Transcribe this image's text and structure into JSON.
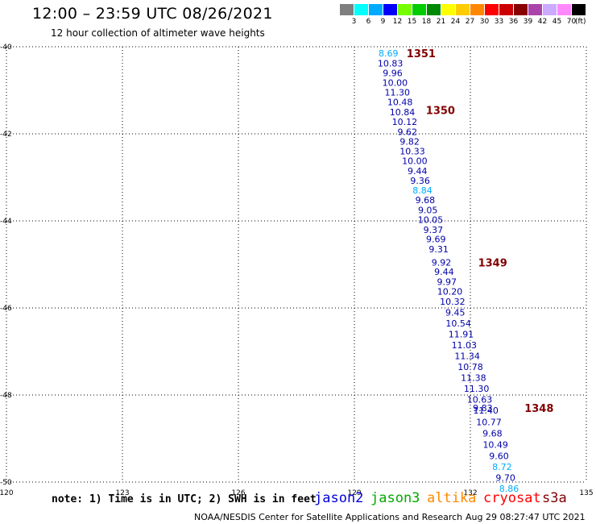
{
  "header": {
    "title": "12:00 – 23:59 UTC 08/26/2021",
    "subtitle": "12 hour collection of altimeter wave heights"
  },
  "legend": {
    "unit": "(ft)",
    "bins": [
      {
        "label": "3",
        "color": "#7f7f7f"
      },
      {
        "label": "6",
        "color": "#00ffff"
      },
      {
        "label": "9",
        "color": "#00aaff"
      },
      {
        "label": "12",
        "color": "#0000ff"
      },
      {
        "label": "15",
        "color": "#77ff00"
      },
      {
        "label": "18",
        "color": "#00cc00"
      },
      {
        "label": "21",
        "color": "#008800"
      },
      {
        "label": "24",
        "color": "#ffff00"
      },
      {
        "label": "27",
        "color": "#ffcc00"
      },
      {
        "label": "30",
        "color": "#ff8800"
      },
      {
        "label": "33",
        "color": "#ff0000"
      },
      {
        "label": "36",
        "color": "#cc0000"
      },
      {
        "label": "39",
        "color": "#880000"
      },
      {
        "label": "42",
        "color": "#aa44aa"
      },
      {
        "label": "45",
        "color": "#ccaaff"
      },
      {
        "label": "70",
        "color": "#ff88ff"
      },
      {
        "label": "",
        "color": "#000000"
      }
    ]
  },
  "map": {
    "lon_range": [
      120,
      135
    ],
    "lat_range": [
      -50,
      -40
    ],
    "lon_ticks": [
      "120",
      "123",
      "126",
      "129",
      "132",
      "135"
    ],
    "lat_ticks": [
      "-40",
      "-42",
      "-44",
      "-46",
      "-48",
      "-50"
    ],
    "grid_color": "#000000",
    "time_labels": [
      {
        "text": "1351",
        "lon": 130.35,
        "lat": -40.15
      },
      {
        "text": "1350",
        "lon": 130.85,
        "lat": -41.45
      },
      {
        "text": "1349",
        "lon": 132.2,
        "lat": -44.95
      },
      {
        "text": "1348",
        "lon": 133.4,
        "lat": -48.3
      }
    ],
    "time_label_color": "#800000",
    "observations": [
      {
        "swh": "8.69",
        "lon": 129.88,
        "lat": -40.15,
        "color": "#00aaff"
      },
      {
        "swh": "10.83",
        "lon": 129.93,
        "lat": -40.38,
        "color": "#0000aa"
      },
      {
        "swh": "9.96",
        "lon": 129.99,
        "lat": -40.6,
        "color": "#0000aa"
      },
      {
        "swh": "10.00",
        "lon": 130.05,
        "lat": -40.82,
        "color": "#0000aa"
      },
      {
        "swh": "11.30",
        "lon": 130.11,
        "lat": -41.05,
        "color": "#0000aa"
      },
      {
        "swh": "10.48",
        "lon": 130.18,
        "lat": -41.27,
        "color": "#0000aa"
      },
      {
        "swh": "10.84",
        "lon": 130.24,
        "lat": -41.5,
        "color": "#0000aa"
      },
      {
        "swh": "10.12",
        "lon": 130.3,
        "lat": -41.72,
        "color": "#0000aa"
      },
      {
        "swh": "9.62",
        "lon": 130.37,
        "lat": -41.95,
        "color": "#0000aa"
      },
      {
        "swh": "9.82",
        "lon": 130.43,
        "lat": -42.18,
        "color": "#0000aa"
      },
      {
        "swh": "10.33",
        "lon": 130.5,
        "lat": -42.4,
        "color": "#0000aa"
      },
      {
        "swh": "10.00",
        "lon": 130.56,
        "lat": -42.62,
        "color": "#0000aa"
      },
      {
        "swh": "9.44",
        "lon": 130.63,
        "lat": -42.85,
        "color": "#0000aa"
      },
      {
        "swh": "9.36",
        "lon": 130.7,
        "lat": -43.07,
        "color": "#0000aa"
      },
      {
        "swh": "8.84",
        "lon": 130.76,
        "lat": -43.3,
        "color": "#00aaff"
      },
      {
        "swh": "9.68",
        "lon": 130.83,
        "lat": -43.52,
        "color": "#0000aa"
      },
      {
        "swh": "9.05",
        "lon": 130.9,
        "lat": -43.75,
        "color": "#0000aa"
      },
      {
        "swh": "10.05",
        "lon": 130.97,
        "lat": -43.97,
        "color": "#0000aa"
      },
      {
        "swh": "9.37",
        "lon": 131.04,
        "lat": -44.2,
        "color": "#0000aa"
      },
      {
        "swh": "9.69",
        "lon": 131.11,
        "lat": -44.42,
        "color": "#0000aa"
      },
      {
        "swh": "9.31",
        "lon": 131.18,
        "lat": -44.65,
        "color": "#0000aa"
      },
      {
        "swh": "9.92",
        "lon": 131.25,
        "lat": -44.95,
        "color": "#0000aa"
      },
      {
        "swh": "9.44",
        "lon": 131.32,
        "lat": -45.17,
        "color": "#0000aa"
      },
      {
        "swh": "9.97",
        "lon": 131.39,
        "lat": -45.4,
        "color": "#0000aa"
      },
      {
        "swh": "10.20",
        "lon": 131.47,
        "lat": -45.62,
        "color": "#0000aa"
      },
      {
        "swh": "10.32",
        "lon": 131.54,
        "lat": -45.85,
        "color": "#0000aa"
      },
      {
        "swh": "9.45",
        "lon": 131.61,
        "lat": -46.1,
        "color": "#0000aa"
      },
      {
        "swh": "10.54",
        "lon": 131.69,
        "lat": -46.35,
        "color": "#0000aa"
      },
      {
        "swh": "11.91",
        "lon": 131.76,
        "lat": -46.6,
        "color": "#0000aa"
      },
      {
        "swh": "11.03",
        "lon": 131.84,
        "lat": -46.85,
        "color": "#0000aa"
      },
      {
        "swh": "11.34",
        "lon": 131.92,
        "lat": -47.1,
        "color": "#0000aa"
      },
      {
        "swh": "10.78",
        "lon": 132.0,
        "lat": -47.35,
        "color": "#0000aa"
      },
      {
        "swh": "11.38",
        "lon": 132.08,
        "lat": -47.6,
        "color": "#0000aa"
      },
      {
        "swh": "11.30",
        "lon": 132.16,
        "lat": -47.85,
        "color": "#0000aa"
      },
      {
        "swh": "10.63",
        "lon": 132.24,
        "lat": -48.1,
        "color": "#0000aa"
      },
      {
        "swh": "9.83",
        "lon": 132.32,
        "lat": -48.3,
        "color": "#0000aa"
      },
      {
        "swh": "11.40",
        "lon": 132.4,
        "lat": -48.35,
        "color": "#0000aa"
      },
      {
        "swh": "10.77",
        "lon": 132.48,
        "lat": -48.62,
        "color": "#0000aa"
      },
      {
        "swh": "9.68",
        "lon": 132.57,
        "lat": -48.88,
        "color": "#0000aa"
      },
      {
        "swh": "10.49",
        "lon": 132.65,
        "lat": -49.14,
        "color": "#0000aa"
      },
      {
        "swh": "9.60",
        "lon": 132.74,
        "lat": -49.4,
        "color": "#0000aa"
      },
      {
        "swh": "8.72",
        "lon": 132.82,
        "lat": -49.65,
        "color": "#00aaff"
      },
      {
        "swh": "9.70",
        "lon": 132.91,
        "lat": -49.9,
        "color": "#0000aa"
      },
      {
        "swh": "8.86",
        "lon": 133.0,
        "lat": -50.15,
        "color": "#00aaff"
      }
    ]
  },
  "footer": {
    "note": "note: 1) Time is in UTC; 2) SWH is in feet",
    "satellites": [
      {
        "name": "jason2",
        "color": "#0000dd"
      },
      {
        "name": "jason3",
        "color": "#00aa00"
      },
      {
        "name": "altika",
        "color": "#ff8800"
      },
      {
        "name": "cryosat",
        "color": "#ff0000"
      },
      {
        "name": "s3a",
        "color": "#800000"
      }
    ],
    "credit": "NOAA/NESDIS Center for Satellite Applications and Research",
    "timestamp": "Aug 29 08:27:47 UTC 2021"
  }
}
